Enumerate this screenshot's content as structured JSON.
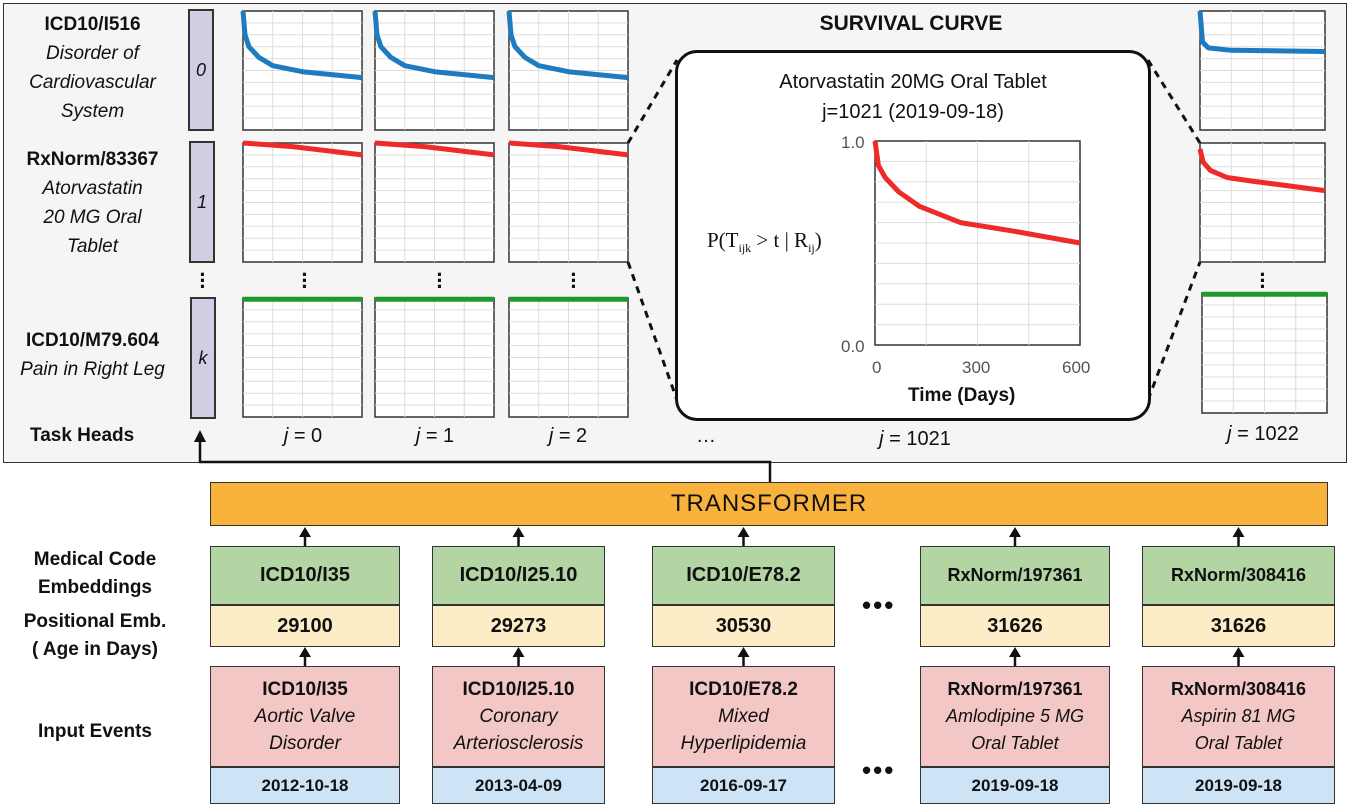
{
  "survival_curve_title": "SURVIVAL CURVE",
  "task_heads_label": "Task Heads",
  "task_heads": [
    {
      "code": "ICD10/I516",
      "desc": [
        "Disorder of",
        "Cardiovascular",
        "System"
      ],
      "index": "0",
      "color": "#1f7bbf"
    },
    {
      "code": "RxNorm/83367",
      "desc": [
        "Atorvastatin",
        "20 MG Oral",
        "Tablet"
      ],
      "index": "1",
      "color": "#ef2a2a"
    },
    {
      "code": "ICD10/M79.604",
      "desc": [
        "Pain in Right Leg"
      ],
      "index": "k",
      "color": "#1e9a2a"
    }
  ],
  "columns_j": [
    {
      "var": "j",
      "val": " = 0"
    },
    {
      "var": "j",
      "val": " = 1"
    },
    {
      "var": "j",
      "val": " = 2"
    }
  ],
  "ellipsis": "…",
  "zoom_column": {
    "var": "j",
    "val": " = 1021"
  },
  "last_column": {
    "var": "j",
    "val": " = 1022"
  },
  "detail": {
    "title": "Atorvastatin 20MG Oral Tablet",
    "subtitle": "j=1021 (2019-09-18)",
    "ylabel": "P(T",
    "ylabel_sub1": "ijk",
    "ylabel_mid": " > t | R",
    "ylabel_sub2": "ij",
    "ylabel_end": ")",
    "xlabel": "Time (Days)",
    "yticks": [
      "1.0",
      "0.0"
    ],
    "xticks": [
      "0",
      "300",
      "600"
    ]
  },
  "chart_data": {
    "type": "line",
    "xlabel": "Time (Days)",
    "ylabel": "P(T_ijk > t | R_ij)",
    "xlim": [
      0,
      600
    ],
    "ylim": [
      0,
      1
    ],
    "grid": true,
    "series": [
      {
        "color": "#ef2a2a",
        "points": [
          [
            0,
            1.0
          ],
          [
            10,
            0.88
          ],
          [
            30,
            0.82
          ],
          [
            70,
            0.75
          ],
          [
            130,
            0.68
          ],
          [
            250,
            0.6
          ],
          [
            400,
            0.56
          ],
          [
            600,
            0.5
          ]
        ]
      }
    ]
  },
  "mini_curves": {
    "blue": [
      [
        0,
        1.0
      ],
      [
        10,
        0.8
      ],
      [
        30,
        0.7
      ],
      [
        80,
        0.61
      ],
      [
        150,
        0.54
      ],
      [
        300,
        0.49
      ],
      [
        600,
        0.44
      ]
    ],
    "red": [
      [
        0,
        1.0
      ],
      [
        250,
        0.97
      ],
      [
        600,
        0.9
      ]
    ],
    "green": [
      [
        0,
        0.99
      ],
      [
        600,
        0.99
      ]
    ],
    "blue_last": [
      [
        0,
        1.0
      ],
      [
        12,
        0.74
      ],
      [
        40,
        0.69
      ],
      [
        150,
        0.67
      ],
      [
        600,
        0.66
      ]
    ],
    "red_last": [
      [
        0,
        0.95
      ],
      [
        15,
        0.84
      ],
      [
        50,
        0.77
      ],
      [
        130,
        0.71
      ],
      [
        250,
        0.68
      ],
      [
        600,
        0.6
      ]
    ]
  },
  "transformer": "TRANSFORMER",
  "row_labels": {
    "embeddings": [
      "Medical Code",
      "Embeddings"
    ],
    "positional": [
      "Positional Emb.",
      "( Age in Days)"
    ],
    "inputs": "Input Events"
  },
  "events": [
    {
      "code": "ICD10/I35",
      "age": "29100",
      "desc": [
        "Aortic Valve",
        "Disorder"
      ],
      "date": "2012-10-18"
    },
    {
      "code": "ICD10/I25.10",
      "age": "29273",
      "desc": [
        "Coronary",
        "Arteriosclerosis"
      ],
      "date": "2013-04-09"
    },
    {
      "code": "ICD10/E78.2",
      "age": "30530",
      "desc": [
        "Mixed",
        "Hyperlipidemia"
      ],
      "date": "2016-09-17"
    },
    {
      "code": "RxNorm/197361",
      "age": "31626",
      "desc": [
        "Amlodipine 5 MG",
        "Oral Tablet"
      ],
      "date": "2019-09-18"
    },
    {
      "code": "RxNorm/308416",
      "age": "31626",
      "desc": [
        "Aspirin 81 MG",
        "Oral Tablet"
      ],
      "date": "2019-09-18"
    }
  ],
  "bottom_ellipsis": "•••",
  "colors": {
    "transformer": "#f9b23b",
    "embedding": "#b3d4a3",
    "positional": "#fdedc6",
    "input": "#f3c7c6",
    "date": "#cde3f6",
    "task_head": "#d2cde3"
  }
}
